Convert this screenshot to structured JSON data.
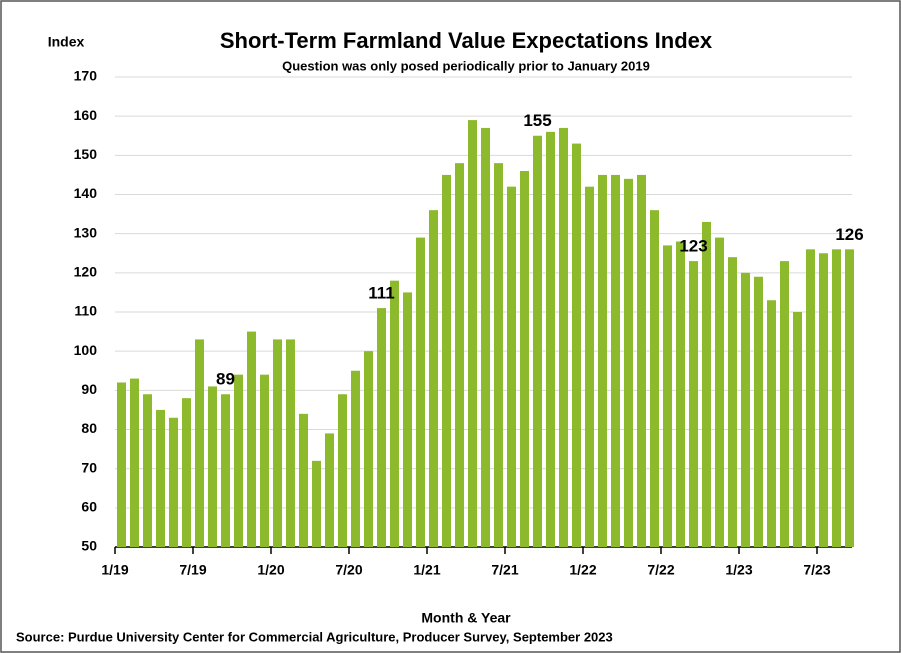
{
  "chart_data": {
    "type": "bar",
    "title": "Short-Term Farmland Value Expectations Index",
    "subtitle": "Question was only posed periodically prior to January 2019",
    "y_axis_label": "Index",
    "x_axis_label": "Month & Year",
    "source": "Source: Purdue University Center for Commercial Agriculture, Producer Survey, September 2023",
    "categories": [
      "1/19",
      null,
      null,
      null,
      null,
      null,
      "7/19",
      null,
      null,
      null,
      null,
      null,
      "1/20",
      null,
      null,
      null,
      null,
      null,
      "7/20",
      null,
      null,
      null,
      null,
      null,
      "1/21",
      null,
      null,
      null,
      null,
      null,
      "7/21",
      null,
      null,
      null,
      null,
      null,
      "1/22",
      null,
      null,
      null,
      null,
      null,
      "7/22",
      null,
      null,
      null,
      null,
      null,
      "1/23",
      null,
      null,
      null,
      null,
      null,
      "7/23",
      null,
      null
    ],
    "values": [
      92,
      93,
      89,
      85,
      83,
      88,
      103,
      91,
      89,
      94,
      105,
      94,
      103,
      103,
      84,
      72,
      79,
      89,
      95,
      100,
      111,
      118,
      115,
      129,
      136,
      145,
      148,
      159,
      157,
      148,
      142,
      146,
      155,
      156,
      157,
      153,
      142,
      145,
      145,
      144,
      145,
      136,
      127,
      128,
      123,
      133,
      129,
      124,
      120,
      119,
      113,
      123,
      110,
      126,
      125,
      126,
      126
    ],
    "labeled_points": [
      8,
      20,
      32,
      44,
      56
    ],
    "color": "#8dba2c",
    "ylim": [
      50,
      170
    ],
    "yticks": [
      50,
      60,
      70,
      80,
      90,
      100,
      110,
      120,
      130,
      140,
      150,
      160,
      170
    ],
    "grid": true
  }
}
